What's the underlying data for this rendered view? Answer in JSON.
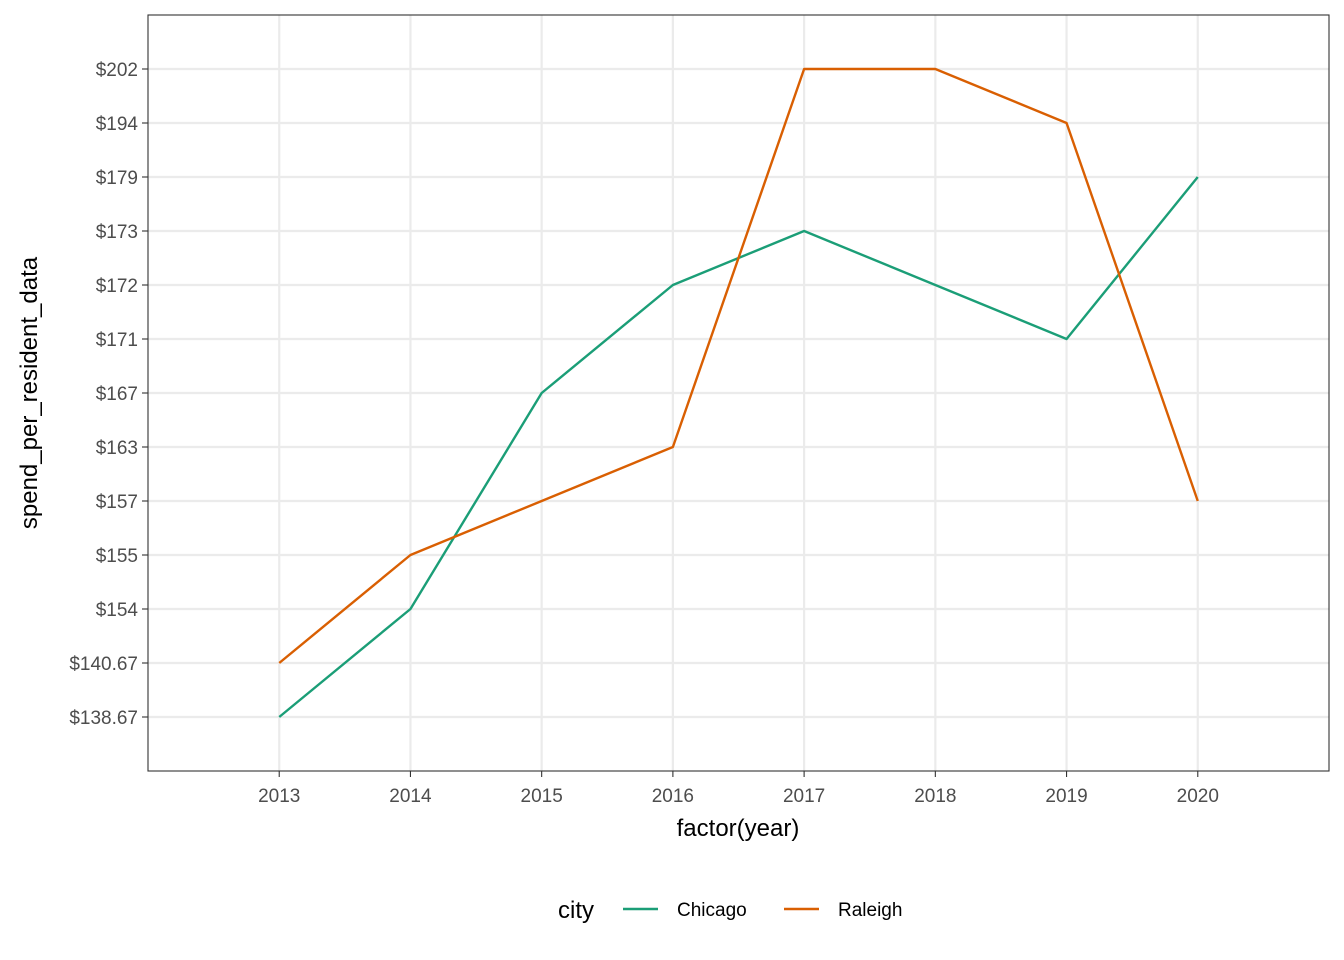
{
  "chart_data": {
    "type": "line",
    "title": "",
    "xlabel": "factor(year)",
    "ylabel": "spend_per_resident_data",
    "categories": [
      "2013",
      "2014",
      "2015",
      "2016",
      "2017",
      "2018",
      "2019",
      "2020"
    ],
    "y_axis_scale": "discrete",
    "y_levels": [
      "$138.67",
      "$140.67",
      "$154",
      "$155",
      "$157",
      "$163",
      "$167",
      "$171",
      "$172",
      "$173",
      "$179",
      "$194",
      "$202"
    ],
    "series": [
      {
        "name": "Chicago",
        "color": "#1b9e77",
        "values": [
          "$138.67",
          "$154",
          "$167",
          "$172",
          "$173",
          "$172",
          "$171",
          "$179"
        ]
      },
      {
        "name": "Raleigh",
        "color": "#d95f02",
        "values": [
          "$140.67",
          "$155",
          "$157",
          "$163",
          "$202",
          "$202",
          "$194",
          "$157"
        ]
      }
    ],
    "grid": true,
    "legend": {
      "title": "city",
      "position": "bottom"
    }
  }
}
